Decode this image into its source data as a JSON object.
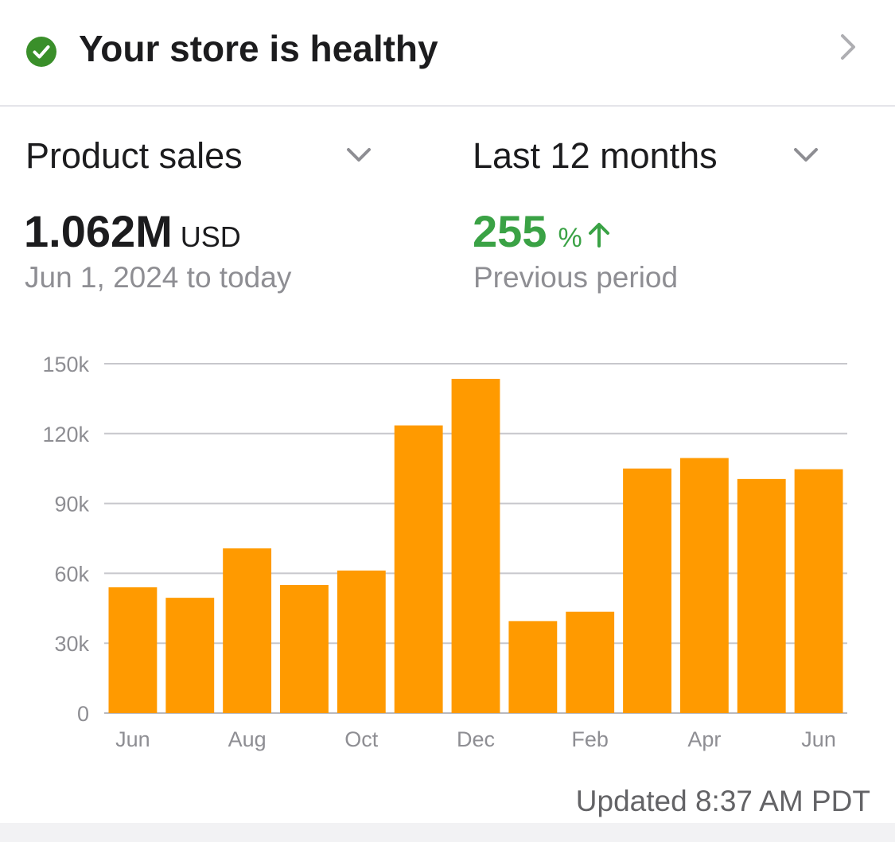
{
  "health": {
    "title": "Your store is healthy",
    "status_color": "#3a8f2a"
  },
  "selectors": {
    "metric_label": "Product sales",
    "period_label": "Last 12 months"
  },
  "metrics": {
    "total_value": "1.062M",
    "total_unit": "USD",
    "total_range": "Jun 1, 2024 to today",
    "change_value": "255",
    "change_unit": "%",
    "change_caption": "Previous period",
    "change_color": "#3aa245"
  },
  "chart_data": {
    "type": "bar",
    "categories": [
      "Jun",
      "Jul",
      "Aug",
      "Sep",
      "Oct",
      "Nov",
      "Dec",
      "Jan",
      "Feb",
      "Mar",
      "Apr",
      "May",
      "Jun"
    ],
    "x_tick_labels": [
      "Jun",
      "",
      "Aug",
      "",
      "Oct",
      "",
      "Dec",
      "",
      "Feb",
      "",
      "Apr",
      "",
      "Jun"
    ],
    "values": [
      54000,
      49500,
      70700,
      55000,
      61200,
      123500,
      143500,
      39500,
      43500,
      105000,
      109500,
      100500,
      104700
    ],
    "y_ticks": [
      0,
      30000,
      60000,
      90000,
      120000,
      150000
    ],
    "y_tick_labels": [
      "0",
      "30k",
      "60k",
      "90k",
      "120k",
      "150k"
    ],
    "ylim": [
      0,
      150000
    ],
    "title": "",
    "xlabel": "",
    "ylabel": "",
    "grid": true,
    "bar_color": "#ff9a00"
  },
  "footer": {
    "updated_text": "Updated 8:37 AM PDT"
  }
}
